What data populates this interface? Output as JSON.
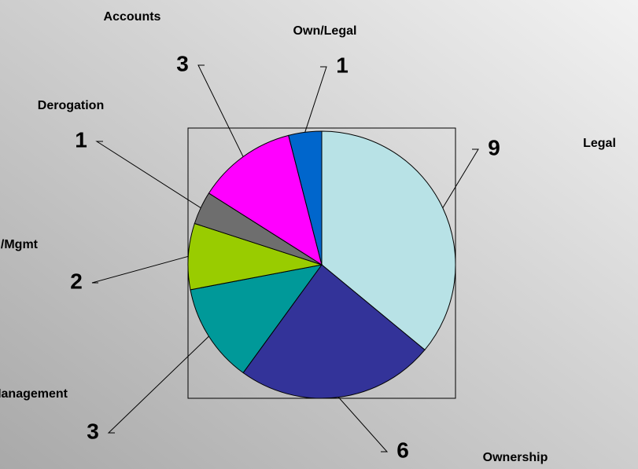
{
  "chart_data": {
    "type": "pie",
    "categories": [
      "Legal",
      "Ownership",
      "Management",
      "Legal/Mgmt",
      "Derogation",
      "Accounts",
      "Own/Legal"
    ],
    "values": [
      9,
      6,
      3,
      2,
      1,
      3,
      1
    ],
    "colors": [
      "#b8e2e6",
      "#333399",
      "#009999",
      "#99cc00",
      "#6e6e6e",
      "#ff00ff",
      "#0066cc"
    ]
  }
}
